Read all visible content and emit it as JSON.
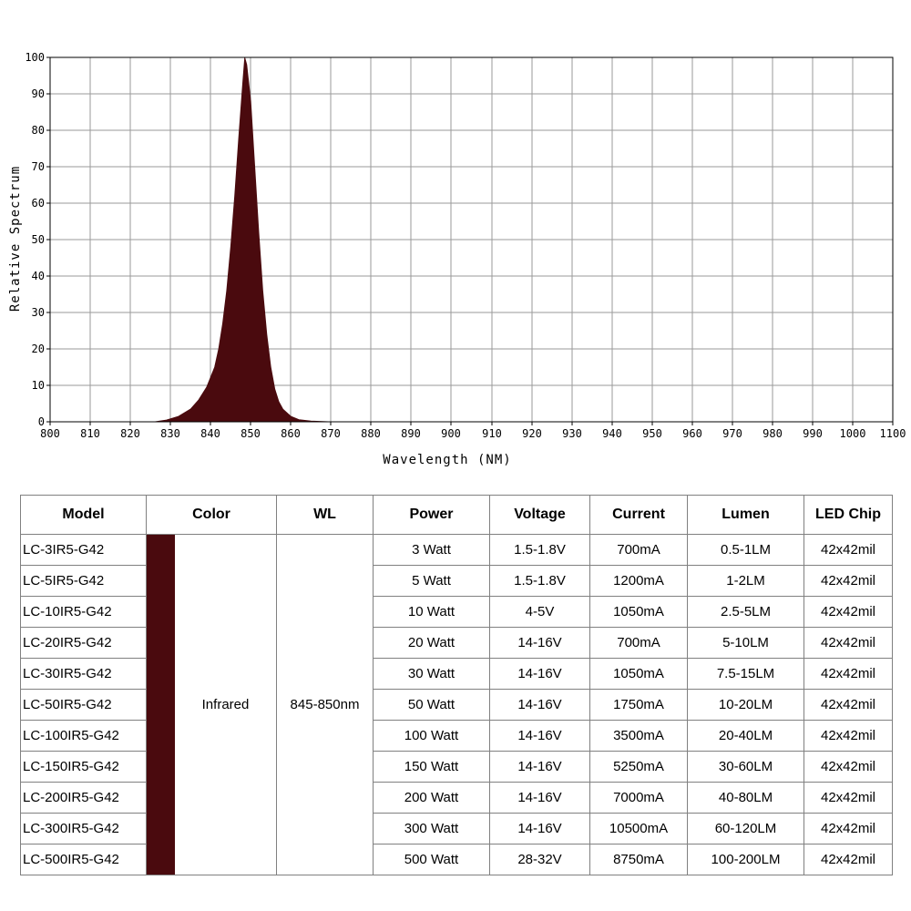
{
  "chart_data": {
    "type": "area",
    "xlabel": "Wavelength (NM)",
    "ylabel": "Relative Spectrum",
    "xlim": [
      800,
      1100
    ],
    "ylim": [
      0,
      100
    ],
    "x_ticks": [
      "800",
      "810",
      "820",
      "830",
      "840",
      "850",
      "860",
      "870",
      "880",
      "890",
      "900",
      "910",
      "920",
      "930",
      "940",
      "950",
      "960",
      "970",
      "980",
      "990",
      "1000",
      "1100"
    ],
    "y_ticks": [
      "0",
      "10",
      "20",
      "30",
      "40",
      "50",
      "60",
      "70",
      "80",
      "90",
      "100"
    ],
    "grid": true,
    "fill_color": "#4a0a0e",
    "series": [
      {
        "x": [
          800,
          826,
          829,
          832,
          835,
          837,
          839,
          841,
          842,
          843,
          844,
          845,
          846,
          847,
          848,
          848.5,
          849,
          850,
          851,
          852,
          853,
          854,
          855,
          856,
          857,
          858,
          860,
          862,
          865,
          870,
          1100
        ],
        "y": [
          0,
          0,
          0.5,
          1.5,
          3.5,
          6,
          9.5,
          15,
          20,
          27,
          36,
          48,
          62,
          78,
          93,
          100,
          98,
          88,
          70,
          52,
          36,
          24,
          15,
          9,
          5.5,
          3.5,
          1.5,
          0.6,
          0.2,
          0,
          0
        ]
      }
    ]
  },
  "table": {
    "headers": [
      "Model",
      "Color",
      "WL",
      "Power",
      "Voltage",
      "Current",
      "Lumen",
      "LED Chip"
    ],
    "color_name": "Infrared",
    "color_hex": "#4a0a0e",
    "wl": "845-850nm",
    "rows": [
      {
        "model": "LC-3IR5-G42",
        "power": "3 Watt",
        "voltage": "1.5-1.8V",
        "current": "700mA",
        "lumen": "0.5-1LM",
        "chip": "42x42mil"
      },
      {
        "model": "LC-5IR5-G42",
        "power": "5 Watt",
        "voltage": "1.5-1.8V",
        "current": "1200mA",
        "lumen": "1-2LM",
        "chip": "42x42mil"
      },
      {
        "model": "LC-10IR5-G42",
        "power": "10 Watt",
        "voltage": "4-5V",
        "current": "1050mA",
        "lumen": "2.5-5LM",
        "chip": "42x42mil"
      },
      {
        "model": "LC-20IR5-G42",
        "power": "20 Watt",
        "voltage": "14-16V",
        "current": "700mA",
        "lumen": "5-10LM",
        "chip": "42x42mil"
      },
      {
        "model": "LC-30IR5-G42",
        "power": "30 Watt",
        "voltage": "14-16V",
        "current": "1050mA",
        "lumen": "7.5-15LM",
        "chip": "42x42mil"
      },
      {
        "model": "LC-50IR5-G42",
        "power": "50 Watt",
        "voltage": "14-16V",
        "current": "1750mA",
        "lumen": "10-20LM",
        "chip": "42x42mil"
      },
      {
        "model": "LC-100IR5-G42",
        "power": "100 Watt",
        "voltage": "14-16V",
        "current": "3500mA",
        "lumen": "20-40LM",
        "chip": "42x42mil"
      },
      {
        "model": "LC-150IR5-G42",
        "power": "150 Watt",
        "voltage": "14-16V",
        "current": "5250mA",
        "lumen": "30-60LM",
        "chip": "42x42mil"
      },
      {
        "model": "LC-200IR5-G42",
        "power": "200 Watt",
        "voltage": "14-16V",
        "current": "7000mA",
        "lumen": "40-80LM",
        "chip": "42x42mil"
      },
      {
        "model": "LC-300IR5-G42",
        "power": "300 Watt",
        "voltage": "14-16V",
        "current": "10500mA",
        "lumen": "60-120LM",
        "chip": "42x42mil"
      },
      {
        "model": "LC-500IR5-G42",
        "power": "500 Watt",
        "voltage": "28-32V",
        "current": "8750mA",
        "lumen": "100-200LM",
        "chip": "42x42mil"
      }
    ]
  }
}
